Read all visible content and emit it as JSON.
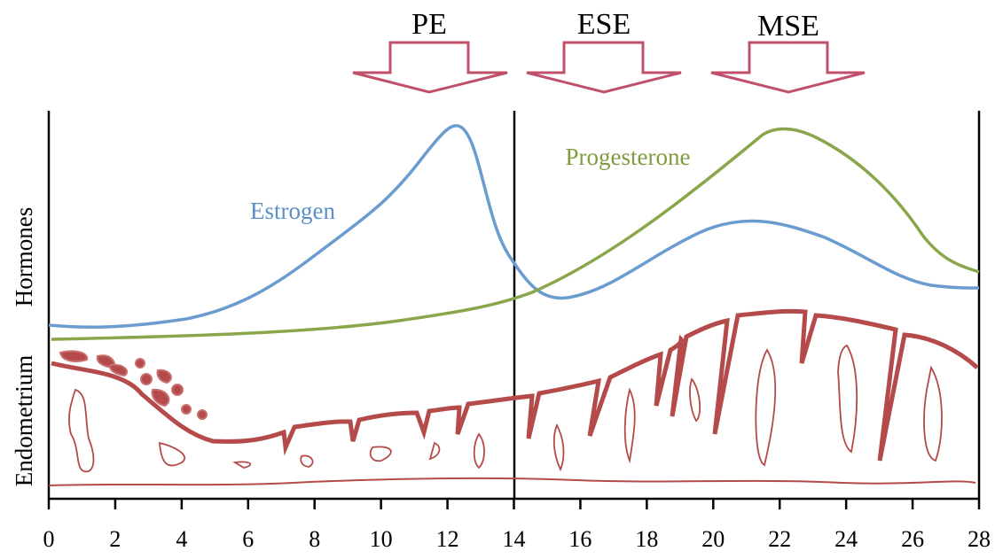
{
  "phases": [
    {
      "label": "PE"
    },
    {
      "label": "ESE"
    },
    {
      "label": "MSE"
    }
  ],
  "curve_labels": {
    "estrogen": "Estrogen",
    "progesterone": "Progesterone"
  },
  "y_labels": {
    "hormones": "Hormones",
    "endometrium": "Endometrium"
  },
  "x_ticks": [
    "0",
    "2",
    "4",
    "6",
    "8",
    "10",
    "12",
    "14",
    "16",
    "18",
    "20",
    "22",
    "24",
    "26",
    "28"
  ]
}
